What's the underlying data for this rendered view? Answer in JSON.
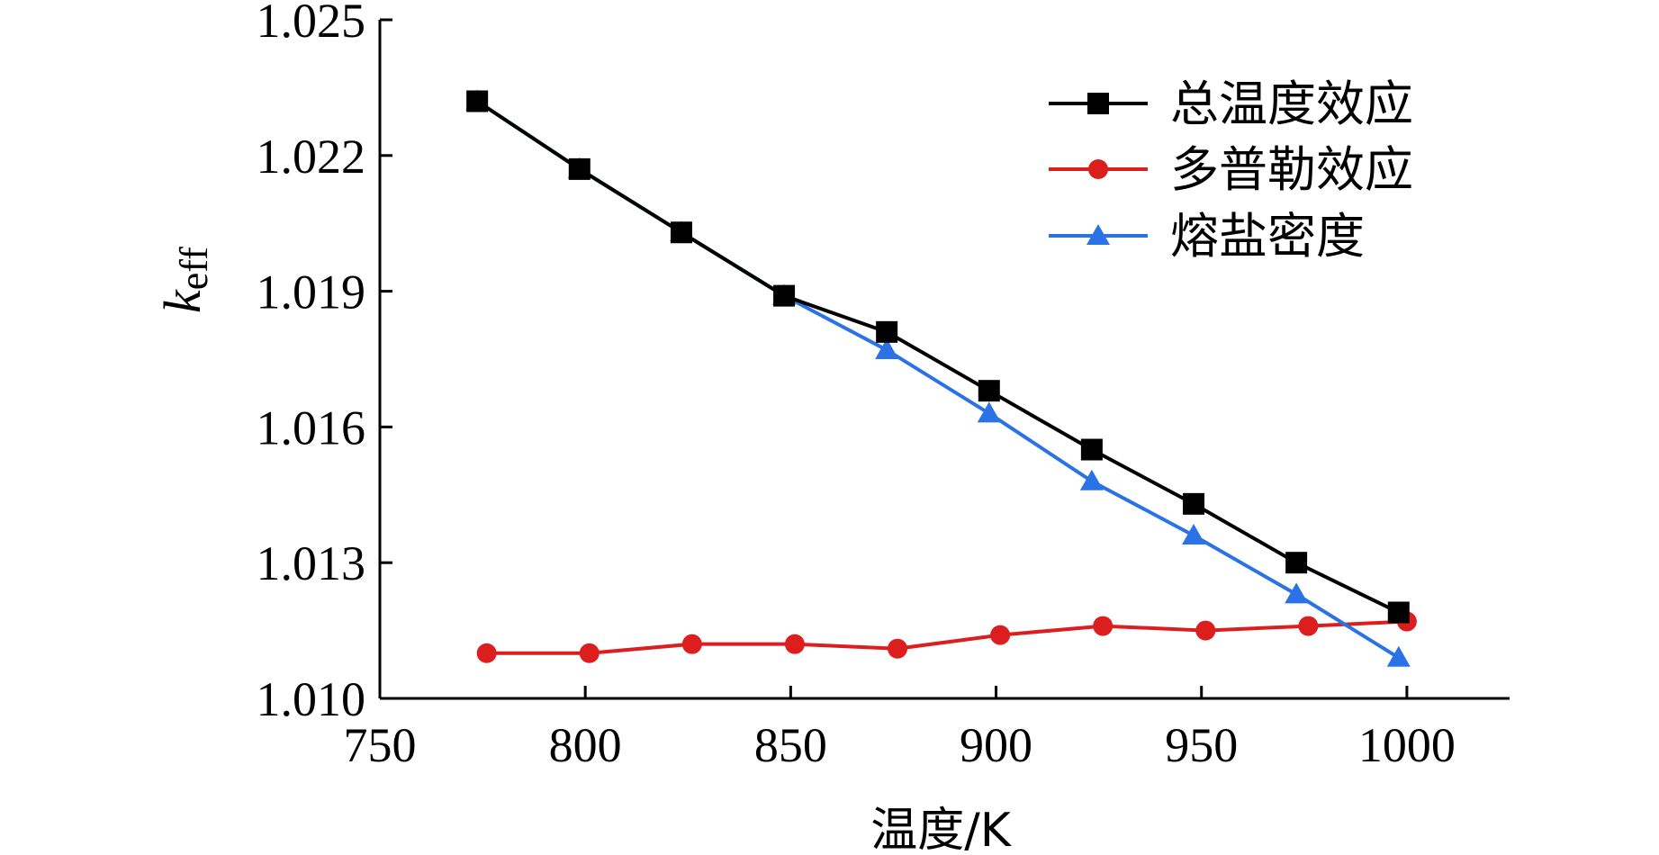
{
  "chart_data": {
    "type": "line",
    "xlabel": "温度/K",
    "ylabel_main": "k",
    "ylabel_sub": "eff",
    "xlim": [
      750,
      1025
    ],
    "ylim": [
      1.01,
      1.025
    ],
    "x_ticks": [
      750,
      800,
      850,
      900,
      950,
      1000
    ],
    "x_tick_labels": [
      "750",
      "800",
      "850",
      "900",
      "950",
      "1000"
    ],
    "y_ticks": [
      1.01,
      1.013,
      1.016,
      1.019,
      1.022,
      1.025
    ],
    "y_tick_labels": [
      "1.010",
      "1.013",
      "1.016",
      "1.019",
      "1.022",
      "1.025"
    ],
    "grid": false,
    "legend_position": "top-right",
    "series": [
      {
        "name": "总温度效应",
        "color": "#000000",
        "marker": "square",
        "x": [
          773.7,
          798.6,
          823.4,
          848.4,
          873.4,
          898.3,
          923.3,
          948.1,
          973.1,
          998
        ],
        "y": [
          1.0232,
          1.0217,
          1.0203,
          1.0189,
          1.0181,
          1.0168,
          1.0155,
          1.0143,
          1.013,
          1.0119
        ]
      },
      {
        "name": "多普勒效应",
        "color": "#dc1e1e",
        "marker": "circle",
        "x": [
          776,
          801,
          826,
          851,
          876,
          901,
          926,
          951,
          976,
          1000
        ],
        "y": [
          1.011,
          1.011,
          1.0112,
          1.0112,
          1.0111,
          1.0114,
          1.0116,
          1.0115,
          1.0116,
          1.0117
        ]
      },
      {
        "name": "熔盐密度",
        "color": "#2a72e6",
        "marker": "triangle",
        "x": [
          773.7,
          798.6,
          823.4,
          848.4,
          873.4,
          898.3,
          923.3,
          948.1,
          973.1,
          998
        ],
        "y": [
          1.0232,
          1.0217,
          1.0203,
          1.0189,
          1.0177,
          1.0163,
          1.0148,
          1.0136,
          1.0123,
          1.0109
        ]
      }
    ]
  }
}
